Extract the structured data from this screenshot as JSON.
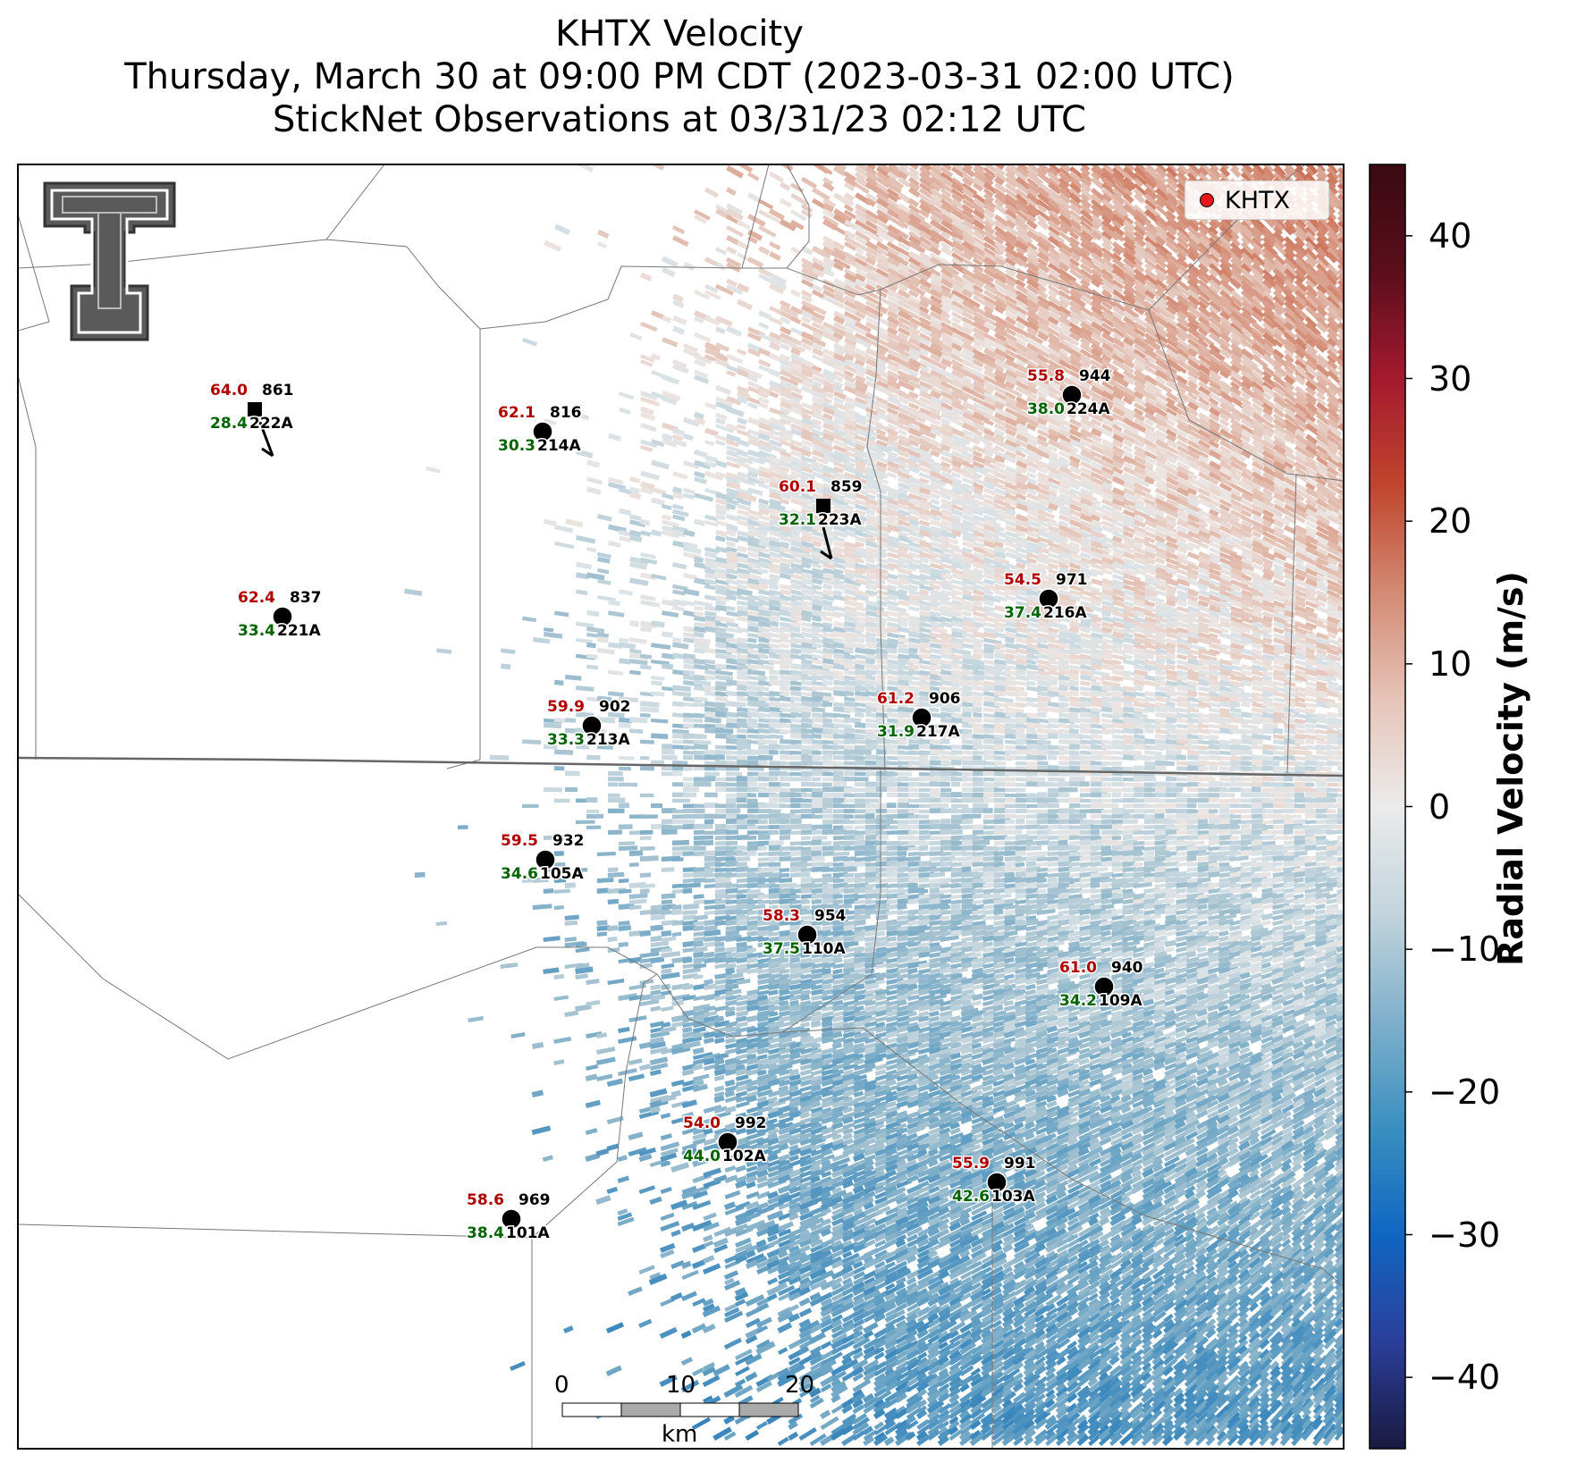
{
  "title": {
    "line1": "KHTX Velocity",
    "line2": "Thursday, March 30 at 09:00 PM CDT (2023-03-31 02:00 UTC)",
    "line3": "StickNet Observations at 03/31/23 02:12 UTC"
  },
  "legend": {
    "label": "KHTX",
    "marker_color": "#e8141a"
  },
  "colorbar": {
    "label": "Radial Velocity (m/s)",
    "ticks": [
      "40",
      "30",
      "20",
      "10",
      "0",
      "−10",
      "−20",
      "−30",
      "−40"
    ],
    "range": [
      -45,
      45
    ],
    "colors": [
      "#1a1a40",
      "#2a3f9a",
      "#1066c2",
      "#3a8fc0",
      "#7fb0cc",
      "#c2d4dc",
      "#ebebeb",
      "#e6c4b8",
      "#d38a73",
      "#c0452d",
      "#a41a2e",
      "#5a0e1c",
      "#3a0a12"
    ]
  },
  "scale_bar": {
    "ticks": [
      "0",
      "10",
      "20"
    ],
    "unit": "km"
  },
  "logo": {
    "name": "Texas Tech Double T"
  },
  "stations": [
    {
      "id": "861",
      "probe": "222A",
      "speed": "64.0",
      "direction": "28.4",
      "marker": "square"
    },
    {
      "id": "816",
      "probe": "214A",
      "speed": "62.1",
      "direction": "30.3",
      "marker": "circle"
    },
    {
      "id": "944",
      "probe": "224A",
      "speed": "55.8",
      "direction": "38.0",
      "marker": "circle"
    },
    {
      "id": "859",
      "probe": "223A",
      "speed": "60.1",
      "direction": "32.1",
      "marker": "square"
    },
    {
      "id": "837",
      "probe": "221A",
      "speed": "62.4",
      "direction": "33.4",
      "marker": "circle"
    },
    {
      "id": "971",
      "probe": "216A",
      "speed": "54.5",
      "direction": "37.4",
      "marker": "circle"
    },
    {
      "id": "902",
      "probe": "213A",
      "speed": "59.9",
      "direction": "33.3",
      "marker": "circle"
    },
    {
      "id": "906",
      "probe": "217A",
      "speed": "61.2",
      "direction": "31.9",
      "marker": "circle"
    },
    {
      "id": "932",
      "probe": "105A",
      "speed": "59.5",
      "direction": "34.6",
      "marker": "circle"
    },
    {
      "id": "954",
      "probe": "110A",
      "speed": "58.3",
      "direction": "37.5",
      "marker": "circle"
    },
    {
      "id": "940",
      "probe": "109A",
      "speed": "61.0",
      "direction": "34.2",
      "marker": "circle"
    },
    {
      "id": "992",
      "probe": "102A",
      "speed": "54.0",
      "direction": "44.0",
      "marker": "circle"
    },
    {
      "id": "991",
      "probe": "103A",
      "speed": "55.9",
      "direction": "42.6",
      "marker": "circle"
    },
    {
      "id": "969",
      "probe": "101A",
      "speed": "58.6",
      "direction": "38.4",
      "marker": "circle"
    }
  ],
  "colors": {
    "speed_text": "#b00000",
    "direction_text": "#006400",
    "id_text": "#000000"
  }
}
